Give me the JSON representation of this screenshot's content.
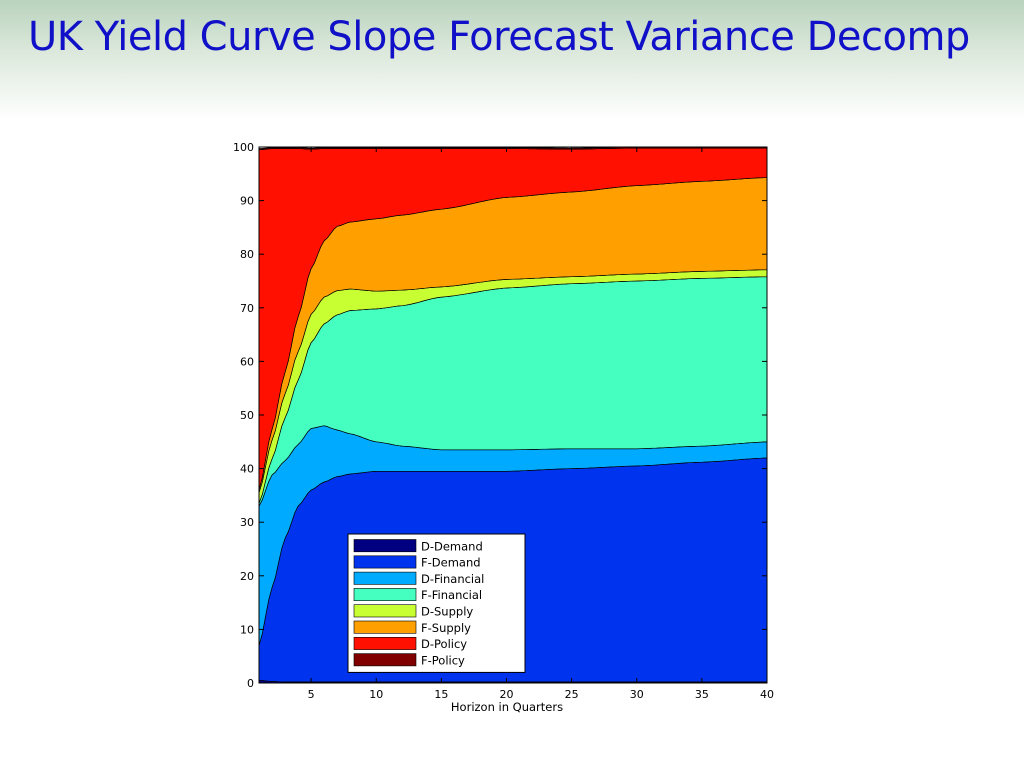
{
  "slide": {
    "title": "UK Yield Curve Slope Forecast Variance Decomp"
  },
  "chart_data": {
    "type": "area",
    "stacked": true,
    "title": "",
    "xlabel": "Horizon in Quarters",
    "ylabel": "",
    "xlim": [
      1,
      40
    ],
    "ylim": [
      0,
      100
    ],
    "x_ticks": [
      5,
      10,
      15,
      20,
      25,
      30,
      35,
      40
    ],
    "y_ticks": [
      0,
      10,
      20,
      30,
      40,
      50,
      60,
      70,
      80,
      90,
      100
    ],
    "grid": false,
    "legend_position": "bottom-left",
    "x": [
      1,
      2,
      3,
      4,
      5,
      6,
      7,
      8,
      10,
      12,
      15,
      20,
      25,
      30,
      35,
      40
    ],
    "series": [
      {
        "name": "D-Demand",
        "color": "#000080",
        "values": [
          0.5,
          0.3,
          0.2,
          0.2,
          0.2,
          0.2,
          0.2,
          0.2,
          0.2,
          0.2,
          0.2,
          0.2,
          0.2,
          0.2,
          0.2,
          0.2
        ]
      },
      {
        "name": "F-Demand",
        "color": "#0033ee",
        "values": [
          6.5,
          17.5,
          26.8,
          32.8,
          35.8,
          37.3,
          38.3,
          38.8,
          39.3,
          39.3,
          39.3,
          39.3,
          39.8,
          40.3,
          41.0,
          41.8
        ]
      },
      {
        "name": "D-Financial",
        "color": "#00aaff",
        "values": [
          26,
          21,
          14.5,
          11.5,
          11.5,
          10.5,
          8.7,
          7.5,
          5.5,
          4.7,
          4.0,
          4.0,
          3.7,
          3.2,
          3.0,
          3.0
        ]
      },
      {
        "name": "F-Financial",
        "color": "#44ffc0",
        "values": [
          0.5,
          3,
          8,
          12,
          16,
          19,
          21.5,
          23,
          24.8,
          26.2,
          28.5,
          30.2,
          30.8,
          31.3,
          31.3,
          30.8
        ]
      },
      {
        "name": "D-Supply",
        "color": "#c8ff33",
        "values": [
          2,
          3.5,
          4.5,
          5.3,
          5.3,
          5,
          4.5,
          4,
          3.3,
          2.9,
          1.9,
          1.6,
          1.3,
          1.3,
          1.3,
          1.3
        ]
      },
      {
        "name": "F-Supply",
        "color": "#ffa000",
        "values": [
          0.5,
          2,
          4,
          6.5,
          8.5,
          10.5,
          12,
          12.5,
          13.5,
          14,
          14.5,
          15.3,
          15.8,
          16.5,
          16.8,
          17.2
        ]
      },
      {
        "name": "D-Policy",
        "color": "#ff1000",
        "values": [
          63.5,
          52.4,
          41.7,
          31.4,
          22.3,
          17.2,
          14.5,
          13.7,
          13.1,
          12.4,
          11.3,
          9.1,
          8.0,
          7.0,
          6.2,
          5.5
        ]
      },
      {
        "name": "F-Policy",
        "color": "#800000",
        "values": [
          0.2,
          0.2,
          0.2,
          0.2,
          0.2,
          0.2,
          0.2,
          0.2,
          0.2,
          0.2,
          0.2,
          0.2,
          0.2,
          0.2,
          0.3,
          0.3
        ]
      }
    ]
  }
}
